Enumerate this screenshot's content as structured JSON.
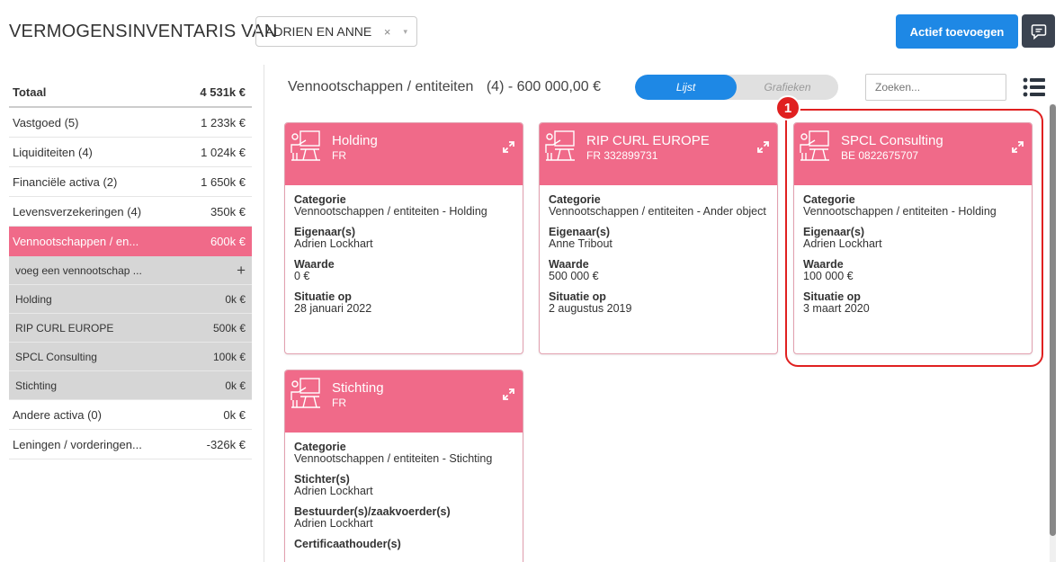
{
  "header": {
    "title": "VERMOGENSINVENTARIS VAN",
    "client_select": {
      "value": "ADRIEN EN ANNE",
      "clear": "×",
      "chevron": "▾"
    },
    "add_button": "Actief toevoegen",
    "chat_icon": "chat-bubble-icon"
  },
  "sidebar": {
    "total": {
      "label": "Totaal",
      "value": "4 531k €"
    },
    "items": [
      {
        "label": "Vastgoed (5)",
        "value": "1 233k €"
      },
      {
        "label": "Liquiditeiten (4)",
        "value": "1 024k €"
      },
      {
        "label": "Financiële activa (2)",
        "value": "1 650k €"
      },
      {
        "label": "Levensverzekeringen (4)",
        "value": "350k €"
      },
      {
        "label": "Vennootschappen / en...",
        "value": "600k €"
      }
    ],
    "add_sub": {
      "label": "voeg een vennootschap ...",
      "icon": "+"
    },
    "subitems": [
      {
        "label": "Holding",
        "value": "0k €"
      },
      {
        "label": "RIP CURL EUROPE",
        "value": "500k €"
      },
      {
        "label": "SPCL Consulting",
        "value": "100k €"
      },
      {
        "label": "Stichting",
        "value": "0k €"
      }
    ],
    "after_items": [
      {
        "label": "Andere activa (0)",
        "value": "0k €"
      },
      {
        "label": "Leningen / vorderingen...",
        "value": "-326k €"
      }
    ],
    "active_color": "#f06a89"
  },
  "content": {
    "title": "Vennootschappen / entiteiten",
    "count": "(4) - 600 000,00 €",
    "toggle": {
      "list": "Lijst",
      "charts": "Grafieken"
    },
    "search_placeholder": "Zoeken...",
    "badge": "1",
    "accent_color": "#1e88e5"
  },
  "cards": [
    {
      "name": "Holding",
      "sub": "FR",
      "fields": [
        {
          "label": "Categorie",
          "value": "Vennootschappen / entiteiten - Holding"
        },
        {
          "label": "Eigenaar(s)",
          "value": "Adrien Lockhart"
        },
        {
          "label": "Waarde",
          "value": "0 €"
        },
        {
          "label": "Situatie op",
          "value": "28 januari 2022"
        }
      ]
    },
    {
      "name": "RIP CURL EUROPE",
      "sub": "FR 332899731",
      "fields": [
        {
          "label": "Categorie",
          "value": "Vennootschappen / entiteiten - Ander object"
        },
        {
          "label": "Eigenaar(s)",
          "value": "Anne Tribout"
        },
        {
          "label": "Waarde",
          "value": "500 000 €"
        },
        {
          "label": "Situatie op",
          "value": "2 augustus 2019"
        }
      ]
    },
    {
      "name": "SPCL Consulting",
      "sub": "BE 0822675707",
      "fields": [
        {
          "label": "Categorie",
          "value": "Vennootschappen / entiteiten - Holding"
        },
        {
          "label": "Eigenaar(s)",
          "value": "Adrien Lockhart"
        },
        {
          "label": "Waarde",
          "value": "100 000 €"
        },
        {
          "label": "Situatie op",
          "value": "3 maart 2020"
        }
      ]
    },
    {
      "name": "Stichting",
      "sub": "FR",
      "fields": [
        {
          "label": "Categorie",
          "value": "Vennootschappen / entiteiten - Stichting"
        },
        {
          "label": "Stichter(s)",
          "value": "Adrien Lockhart"
        },
        {
          "label": "Bestuurder(s)/zaakvoerder(s)",
          "value": "Adrien Lockhart"
        },
        {
          "label": "Certificaathouder(s)",
          "value": ""
        }
      ]
    }
  ]
}
